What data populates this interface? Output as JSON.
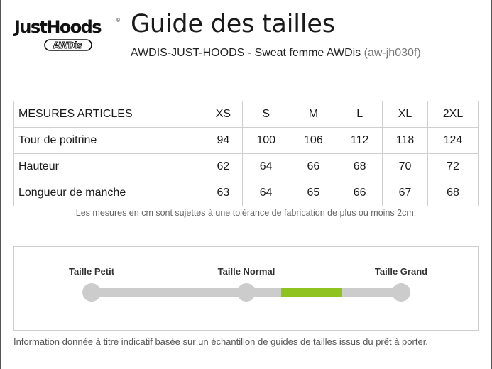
{
  "brand": {
    "name": "JustHoods",
    "registered": "®",
    "sub_brand": "AWDis"
  },
  "page": {
    "title": "Guide des tailles",
    "product_name": "AWDIS-JUST-HOODS - Sweat femme AWDis",
    "product_code": "(aw-jh030f)"
  },
  "size_table": {
    "header_label": "MESURES ARTICLES",
    "sizes": [
      "XS",
      "S",
      "M",
      "L",
      "XL",
      "2XL"
    ],
    "rows": [
      {
        "label": "Tour de poitrine",
        "values": [
          "94",
          "100",
          "106",
          "112",
          "118",
          "124"
        ]
      },
      {
        "label": "Hauteur",
        "values": [
          "62",
          "64",
          "66",
          "68",
          "70",
          "72"
        ]
      },
      {
        "label": "Longueur de manche",
        "values": [
          "63",
          "64",
          "65",
          "66",
          "67",
          "68"
        ]
      }
    ]
  },
  "tolerance_note": "Les mesures en cm sont sujettes à une tolérance de fabrication de plus ou moins 2cm.",
  "fit_scale": {
    "labels": {
      "small": "Taille Petit",
      "normal": "Taille Normal",
      "large": "Taille Grand"
    },
    "highlight_color": "#8fc31f",
    "track_color": "#cccccc"
  },
  "footnote": "Information donnée à titre indicatif basée sur un échantillon de guides de tailles issus du prêt à porter."
}
